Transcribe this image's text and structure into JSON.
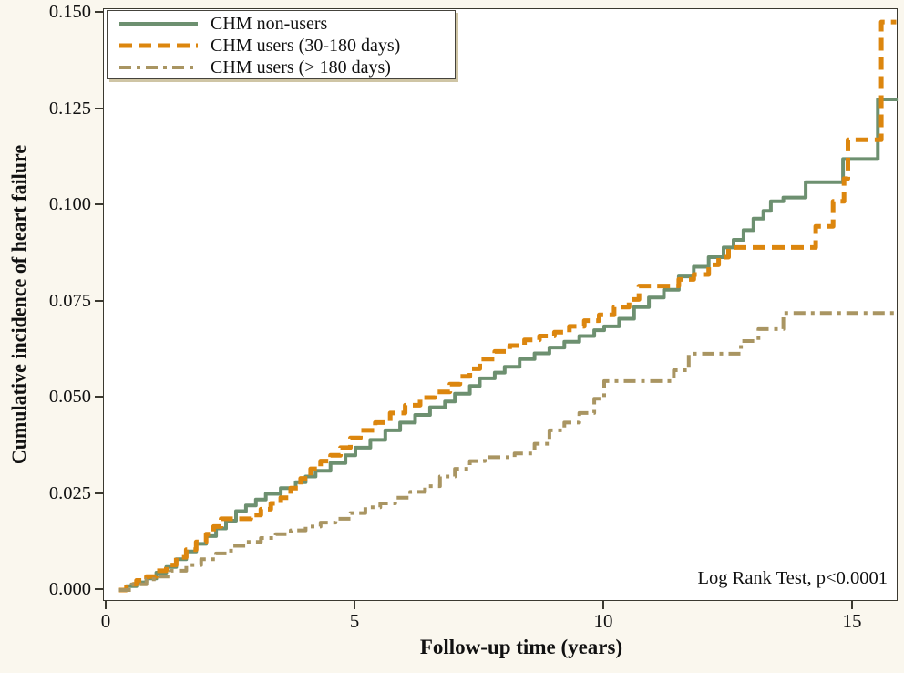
{
  "figure": {
    "background": "#faf7ee",
    "plot_background": "#ffffff",
    "frame_color": "#3b3930",
    "text_color": "#111111"
  },
  "y_axis": {
    "title": "Cumulative incidence of heart failure",
    "tick_labels": [
      "0.150",
      "0.125",
      "0.100",
      "0.075",
      "0.050",
      "0.025",
      "0.000"
    ],
    "tick_values": [
      0.15,
      0.125,
      0.1,
      0.075,
      0.05,
      0.025,
      0.0
    ]
  },
  "x_axis": {
    "title": "Follow-up time (years)",
    "tick_labels": [
      "0",
      "5",
      "10",
      "15"
    ],
    "tick_values": [
      0,
      5,
      10,
      15
    ]
  },
  "annotation": "Log Rank Test, p<0.0001",
  "legend": {
    "position": "top-left",
    "items": [
      {
        "label": "CHM non-users"
      },
      {
        "label": "CHM users (30-180 days)"
      },
      {
        "label": "CHM users (> 180 days)"
      }
    ]
  },
  "chart_data": {
    "type": "line",
    "step": true,
    "title": "",
    "xlabel": "Follow-up time (years)",
    "ylabel": "Cumulative incidence of heart failure",
    "xlim": [
      0,
      16
    ],
    "ylim": [
      0,
      0.15
    ],
    "grid": false,
    "legend_position": "top-left",
    "annotation": "Log Rank Test, p<0.0001",
    "series": [
      {
        "name": "CHM non-users",
        "color": "#6d9070",
        "style": "solid",
        "dash": [],
        "width": 4,
        "points": [
          [
            0.25,
            0
          ],
          [
            0.4,
            0.001
          ],
          [
            0.6,
            0.002
          ],
          [
            0.8,
            0.003
          ],
          [
            1.0,
            0.0045
          ],
          [
            1.2,
            0.006
          ],
          [
            1.4,
            0.008
          ],
          [
            1.6,
            0.01
          ],
          [
            1.8,
            0.012
          ],
          [
            2.0,
            0.014
          ],
          [
            2.2,
            0.016
          ],
          [
            2.4,
            0.018
          ],
          [
            2.6,
            0.0205
          ],
          [
            2.8,
            0.022
          ],
          [
            3.0,
            0.0235
          ],
          [
            3.2,
            0.025
          ],
          [
            3.5,
            0.0265
          ],
          [
            3.8,
            0.028
          ],
          [
            4.0,
            0.0295
          ],
          [
            4.2,
            0.031
          ],
          [
            4.5,
            0.033
          ],
          [
            4.8,
            0.035
          ],
          [
            5.0,
            0.037
          ],
          [
            5.3,
            0.039
          ],
          [
            5.6,
            0.0415
          ],
          [
            5.9,
            0.0435
          ],
          [
            6.2,
            0.0455
          ],
          [
            6.5,
            0.0475
          ],
          [
            6.8,
            0.049
          ],
          [
            7.0,
            0.051
          ],
          [
            7.3,
            0.053
          ],
          [
            7.5,
            0.055
          ],
          [
            7.8,
            0.0565
          ],
          [
            8.0,
            0.058
          ],
          [
            8.3,
            0.06
          ],
          [
            8.6,
            0.0615
          ],
          [
            8.9,
            0.063
          ],
          [
            9.2,
            0.0645
          ],
          [
            9.5,
            0.066
          ],
          [
            9.8,
            0.0675
          ],
          [
            10.0,
            0.0685
          ],
          [
            10.3,
            0.0705
          ],
          [
            10.6,
            0.0735
          ],
          [
            10.9,
            0.076
          ],
          [
            11.2,
            0.078
          ],
          [
            11.5,
            0.0815
          ],
          [
            11.8,
            0.084
          ],
          [
            12.1,
            0.0865
          ],
          [
            12.4,
            0.089
          ],
          [
            12.6,
            0.091
          ],
          [
            12.8,
            0.0935
          ],
          [
            13.0,
            0.0965
          ],
          [
            13.2,
            0.0985
          ],
          [
            13.35,
            0.101
          ],
          [
            13.6,
            0.102
          ],
          [
            14.05,
            0.106
          ],
          [
            14.8,
            0.112
          ],
          [
            15.5,
            0.1275
          ],
          [
            15.9,
            0.1275
          ]
        ]
      },
      {
        "name": "CHM users (30-180 days)",
        "color": "#dc860e",
        "style": "dashed",
        "dash": [
          14,
          7
        ],
        "width": 5,
        "points": [
          [
            0.25,
            0
          ],
          [
            0.4,
            0.0015
          ],
          [
            0.6,
            0.0025
          ],
          [
            0.8,
            0.0035
          ],
          [
            1.0,
            0.005
          ],
          [
            1.2,
            0.0065
          ],
          [
            1.4,
            0.0085
          ],
          [
            1.6,
            0.0105
          ],
          [
            1.8,
            0.0125
          ],
          [
            2.0,
            0.0145
          ],
          [
            2.15,
            0.0165
          ],
          [
            2.3,
            0.0185
          ],
          [
            2.9,
            0.0195
          ],
          [
            3.1,
            0.021
          ],
          [
            3.3,
            0.0225
          ],
          [
            3.5,
            0.024
          ],
          [
            3.7,
            0.0265
          ],
          [
            3.9,
            0.029
          ],
          [
            4.1,
            0.0315
          ],
          [
            4.3,
            0.0335
          ],
          [
            4.5,
            0.035
          ],
          [
            4.7,
            0.037
          ],
          [
            4.9,
            0.0395
          ],
          [
            5.1,
            0.0415
          ],
          [
            5.4,
            0.0435
          ],
          [
            5.7,
            0.046
          ],
          [
            6.0,
            0.048
          ],
          [
            6.3,
            0.05
          ],
          [
            6.6,
            0.0515
          ],
          [
            6.9,
            0.0535
          ],
          [
            7.1,
            0.0555
          ],
          [
            7.3,
            0.0575
          ],
          [
            7.5,
            0.06
          ],
          [
            7.8,
            0.062
          ],
          [
            8.1,
            0.0635
          ],
          [
            8.4,
            0.065
          ],
          [
            8.7,
            0.066
          ],
          [
            9.0,
            0.067
          ],
          [
            9.3,
            0.0685
          ],
          [
            9.6,
            0.07
          ],
          [
            9.9,
            0.0715
          ],
          [
            10.2,
            0.0735
          ],
          [
            10.5,
            0.0755
          ],
          [
            10.7,
            0.079
          ],
          [
            11.5,
            0.0807
          ],
          [
            11.8,
            0.082
          ],
          [
            12.1,
            0.0845
          ],
          [
            12.3,
            0.0865
          ],
          [
            12.5,
            0.089
          ],
          [
            14.25,
            0.0945
          ],
          [
            14.6,
            0.101
          ],
          [
            14.82,
            0.1069
          ],
          [
            14.9,
            0.117
          ],
          [
            15.57,
            0.1476
          ],
          [
            15.87,
            0.1476
          ]
        ]
      },
      {
        "name": "CHM users (> 180 days)",
        "color": "#a99562",
        "style": "dash-dot",
        "dash": [
          13,
          6,
          4,
          6
        ],
        "width": 4,
        "points": [
          [
            0.25,
            0
          ],
          [
            0.5,
            0.0015
          ],
          [
            0.8,
            0.0028
          ],
          [
            1.0,
            0.0035
          ],
          [
            1.3,
            0.005
          ],
          [
            1.6,
            0.0065
          ],
          [
            1.9,
            0.008
          ],
          [
            2.2,
            0.0095
          ],
          [
            2.5,
            0.0115
          ],
          [
            2.8,
            0.0125
          ],
          [
            3.1,
            0.0135
          ],
          [
            3.4,
            0.0145
          ],
          [
            3.7,
            0.0155
          ],
          [
            4.0,
            0.0165
          ],
          [
            4.3,
            0.0175
          ],
          [
            4.6,
            0.0185
          ],
          [
            4.9,
            0.02
          ],
          [
            5.2,
            0.0215
          ],
          [
            5.5,
            0.0225
          ],
          [
            5.8,
            0.024
          ],
          [
            6.1,
            0.0255
          ],
          [
            6.4,
            0.027
          ],
          [
            6.7,
            0.0295
          ],
          [
            7.0,
            0.0315
          ],
          [
            7.3,
            0.0335
          ],
          [
            7.6,
            0.0345
          ],
          [
            8.2,
            0.0355
          ],
          [
            8.6,
            0.038
          ],
          [
            8.9,
            0.0415
          ],
          [
            9.2,
            0.0435
          ],
          [
            9.5,
            0.046
          ],
          [
            9.8,
            0.0497
          ],
          [
            10.0,
            0.0543
          ],
          [
            11.4,
            0.0571
          ],
          [
            11.7,
            0.0614
          ],
          [
            12.75,
            0.0647
          ],
          [
            13.1,
            0.0678
          ],
          [
            13.6,
            0.072
          ],
          [
            15.9,
            0.072
          ]
        ]
      }
    ]
  }
}
